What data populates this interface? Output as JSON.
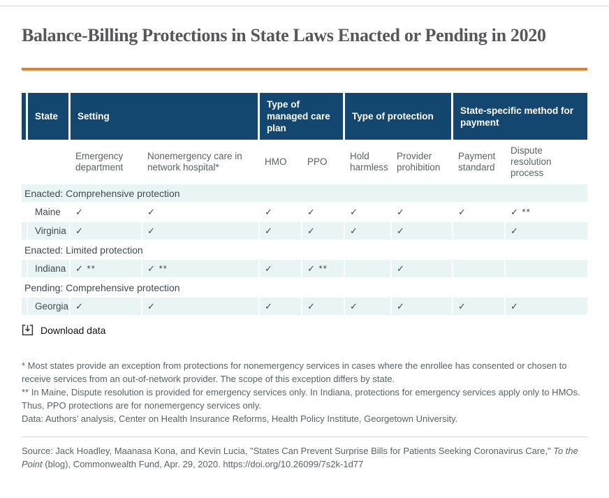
{
  "page": {
    "title": "Balance-Billing Protections in State Laws Enacted or Pending in 2020"
  },
  "colors": {
    "header_blue": "#13476f",
    "row_stripe": "#e9f4f5",
    "accent_orange": "#e87f28",
    "title_gray": "#56575b",
    "text_gray": "#5a6366"
  },
  "table": {
    "group_headers": [
      {
        "id": "spacer",
        "label": "",
        "span": 1
      },
      {
        "id": "state",
        "label": "State",
        "span": 1
      },
      {
        "id": "setting",
        "label": "Setting",
        "span": 2
      },
      {
        "id": "managed-care-plan",
        "label": "Type of managed care plan",
        "span": 2
      },
      {
        "id": "protection",
        "label": "Type of protection",
        "span": 2
      },
      {
        "id": "payment-method",
        "label": "State-specific method for payment",
        "span": 2
      }
    ],
    "column_headers": [
      {
        "id": "emergency-department",
        "label": "Emergency department"
      },
      {
        "id": "nonemergency-network-hospital",
        "label": "Nonemergency care in network hospital*"
      },
      {
        "id": "hmo",
        "label": "HMO"
      },
      {
        "id": "ppo",
        "label": "PPO"
      },
      {
        "id": "hold-harmless",
        "label": "Hold harmless"
      },
      {
        "id": "provider-prohibition",
        "label": "Provider prohibition"
      },
      {
        "id": "payment-standard",
        "label": "Payment standard"
      },
      {
        "id": "dispute-resolution-process",
        "label": "Dispute resolution process"
      }
    ],
    "rows": [
      {
        "type": "section",
        "label": "Enacted: Comprehensive protection"
      },
      {
        "type": "state",
        "state": "Maine",
        "cells": [
          "✓",
          "✓",
          "✓",
          "✓",
          "✓",
          "✓",
          "✓",
          "✓ **"
        ]
      },
      {
        "type": "state",
        "state": "Virginia",
        "cells": [
          "✓",
          "✓",
          "✓",
          "✓",
          "✓",
          "✓",
          "",
          "✓"
        ]
      },
      {
        "type": "section",
        "label": "Enacted: Limited protection"
      },
      {
        "type": "state",
        "state": "Indiana",
        "cells": [
          "✓ **",
          "✓ **",
          "✓",
          "✓ **",
          "",
          "✓",
          "",
          ""
        ]
      },
      {
        "type": "section",
        "label": "Pending: Comprehensive protection"
      },
      {
        "type": "state",
        "state": "Georgia",
        "cells": [
          "✓",
          "✓",
          "✓",
          "✓",
          "✓",
          "✓",
          "✓",
          "✓"
        ]
      }
    ]
  },
  "download": {
    "label": "Download data"
  },
  "notes": [
    "* Most states provide an exception from protections for nonemergency services in cases where the enrollee has consented or chosen to receive services from an out-of-network provider. The scope of this exception differs by state.",
    "** In Maine, Dispute resolution is provided for emergency services only. In Indiana, protections for emergency services apply only to HMOs. Thus, PPO protections are for nonemergency services only.",
    "Data: Authors’ analysis, Center on Health Insurance Reforms, Health Policy Institute, Georgetown University."
  ],
  "source": {
    "prefix": "Source:  Jack Hoadley, Maanasa Kona, and Kevin Lucia, \"States Can Prevent Surprise Bills for Patients Seeking Coronavirus Care,\" ",
    "italic": "To the Point",
    "suffix": " (blog), Commonwealth Fund, Apr. 29, 2020.  https://doi.org/10.26099/7s2k-1d77"
  }
}
